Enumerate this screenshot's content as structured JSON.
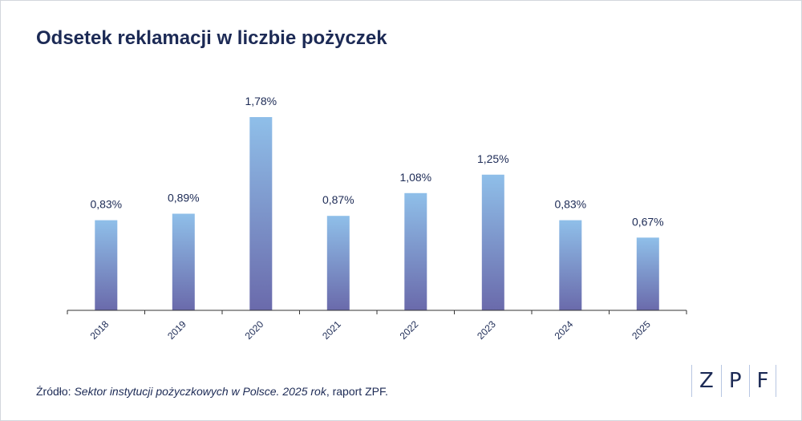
{
  "title": "Odsetek reklamacji w liczbie pożyczek",
  "source": {
    "prefix": "Źródło: ",
    "italic": "Sektor instytucji pożyczkowych w Polsce. 2025 rok",
    "suffix": ", raport ZPF."
  },
  "logo": {
    "letters": [
      "Z",
      "P",
      "F"
    ]
  },
  "colors": {
    "title": "#1c2a55",
    "bar_top": "#8fbfe9",
    "bar_bottom": "#6a6aab",
    "axis": "#333333"
  },
  "chart_data": {
    "type": "bar",
    "categories": [
      "2018",
      "2019",
      "2020",
      "2021",
      "2022",
      "2023",
      "2024",
      "2025"
    ],
    "values": [
      0.83,
      0.89,
      1.78,
      0.87,
      1.08,
      1.25,
      0.83,
      0.67
    ],
    "data_labels": [
      "0,83%",
      "0,89%",
      "1,78%",
      "0,87%",
      "1,08%",
      "1,25%",
      "0,83%",
      "0,67%"
    ],
    "title": "Odsetek reklamacji w liczbie pożyczek",
    "xlabel": "",
    "ylabel": "",
    "ylim": [
      0,
      1.78
    ],
    "grid": false,
    "unit": "%"
  }
}
